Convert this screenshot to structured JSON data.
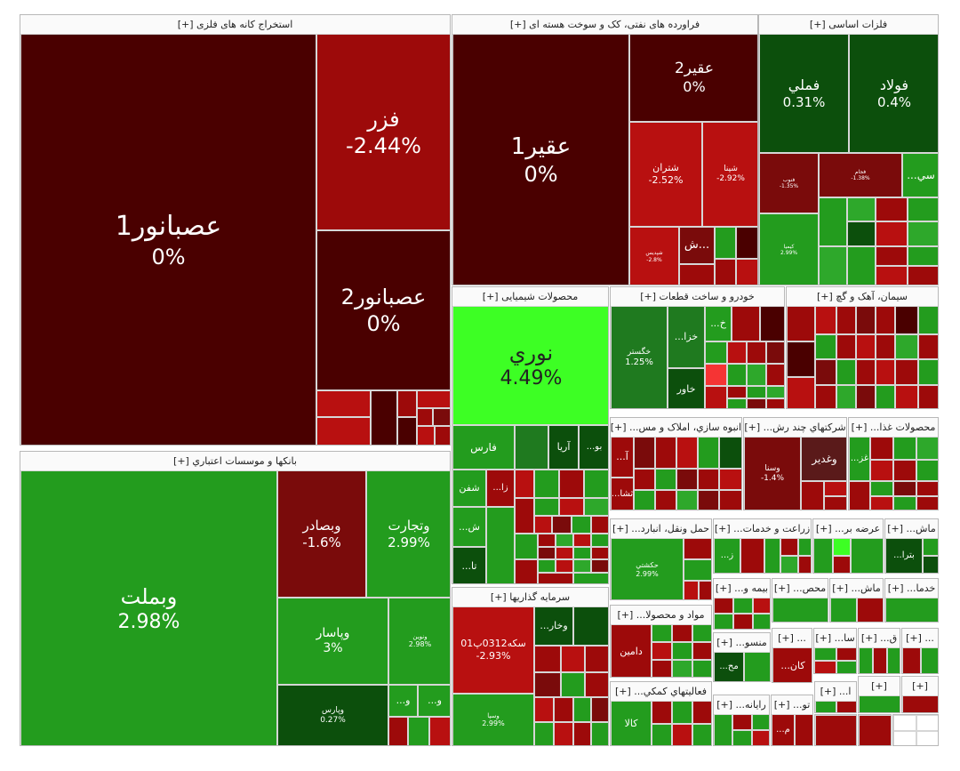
{
  "sectors": {
    "s1": {
      "title": "استخراج کانه های فلزی [+]",
      "tiles": [
        {
          "sym": "عصبانور1",
          "pct": "0%"
        },
        {
          "sym": "فزر",
          "pct": "-2.44%"
        },
        {
          "sym": "عصبانور2",
          "pct": "0%"
        }
      ]
    },
    "s2": {
      "title": "فراورده های نفتی، کک و سوخت هسته ای [+]",
      "tiles": [
        {
          "sym": "عقیر1",
          "pct": "0%"
        },
        {
          "sym": "عقیر2",
          "pct": "0%"
        },
        {
          "sym": "شتران",
          "pct": "-2.52%"
        },
        {
          "sym": "شپنا",
          "pct": "-2.92%"
        },
        {
          "sym": "شپدیس",
          "pct": "-2.8%"
        },
        {
          "sym": "ش..."
        }
      ]
    },
    "s3": {
      "title": "فلزات اساسی [+]",
      "tiles": [
        {
          "sym": "فملي",
          "pct": "0.31%"
        },
        {
          "sym": "فولاد",
          "pct": "0.4%"
        },
        {
          "sym": "فنوب",
          "pct": "-1.35%"
        },
        {
          "sym": "فجام",
          "pct": "-1.38%"
        },
        {
          "sym": "...سي"
        },
        {
          "sym": "کیمیا",
          "pct": "2.99%"
        }
      ]
    },
    "s4": {
      "title": "محصولات شیمیایی [+]",
      "tiles": [
        {
          "sym": "نوري",
          "pct": "4.49%"
        },
        {
          "sym": "فارس"
        },
        {
          "sym": "آریا"
        },
        {
          "sym": "...بو"
        },
        {
          "sym": "شفن"
        },
        {
          "sym": "...زا"
        },
        {
          "sym": "...ش"
        },
        {
          "sym": "...تا"
        }
      ]
    },
    "s5": {
      "title": "خودرو و ساخت قطعات [+]",
      "tiles": [
        {
          "sym": "خگستر",
          "pct": "1.25%"
        },
        {
          "sym": "...خزا"
        },
        {
          "sym": "...خ"
        },
        {
          "sym": "خاور"
        }
      ]
    },
    "s6": {
      "title": "سیمان، آهک و گچ [+]"
    },
    "s7": {
      "title": "انبوه سازي، املاک و مس... [+]",
      "tiles": [
        {
          "sym": "...آ"
        },
        {
          "sym": "...ثشا"
        }
      ]
    },
    "s8": {
      "title": "شرکتهاي چند رش... [+]",
      "tiles": [
        {
          "sym": "وغدير"
        },
        {
          "sym": "وسنا",
          "pct": "-1.4%"
        }
      ]
    },
    "s9": {
      "title": "محصولات غذا... [+]",
      "tiles": [
        {
          "sym": "...غز"
        }
      ]
    },
    "s10": {
      "title": "بانکها و موسسات اعتباري [+]",
      "tiles": [
        {
          "sym": "وبملت",
          "pct": "2.98%"
        },
        {
          "sym": "وبصادر",
          "pct": "-1.6%"
        },
        {
          "sym": "وتجارت",
          "pct": "2.99%"
        },
        {
          "sym": "وپاسار",
          "pct": "3%"
        },
        {
          "sym": "ونوين",
          "pct": "2.98%"
        },
        {
          "sym": "وپارس",
          "pct": "0.27%"
        },
        {
          "sym": "...و"
        },
        {
          "sym": "...و"
        }
      ]
    },
    "s11": {
      "title": "سرمایه گذاریها [+]",
      "tiles": [
        {
          "sym": "سکه0312پ01",
          "pct": "-2.93%"
        },
        {
          "sym": "...وخار"
        },
        {
          "sym": "وسپا",
          "pct": "2.99%"
        }
      ]
    },
    "s12": {
      "title": "حمل ونقل، انبارد... [+]",
      "tiles": [
        {
          "sym": "حکشتي",
          "pct": "2.99%"
        }
      ]
    },
    "s13": {
      "title": "زراعت و خدمات... [+]",
      "tiles": [
        {
          "sym": "...ز"
        }
      ]
    },
    "s14": {
      "title": "عرضه بر... [+]"
    },
    "s15": {
      "title": "ماش... [+]",
      "tiles": [
        {
          "sym": "...بترا"
        }
      ]
    },
    "s16": {
      "title": "مواد و محصولا... [+]",
      "tiles": [
        {
          "sym": "دامين"
        }
      ]
    },
    "s17": {
      "title": "بيمه و... [+]"
    },
    "s18": {
      "title": "محص... [+]"
    },
    "s19": {
      "title": "ماش... [+]"
    },
    "s20": {
      "title": "خدما... [+]"
    },
    "s21": {
      "title": "منسو... [+]",
      "tiles": [
        {
          "sym": "...مح"
        }
      ]
    },
    "s22": {
      "title": "... [+]",
      "tiles": [
        {
          "sym": "...كان"
        }
      ]
    },
    "s23": {
      "title": "سا... [+]"
    },
    "s24": {
      "title": "فعالیتهاي کمکي... [+]",
      "tiles": [
        {
          "sym": "کالا"
        }
      ]
    },
    "s25": {
      "title": "رايانه... [+]"
    },
    "s26": {
      "title": "تو... [+]",
      "tiles": [
        {
          "sym": "...م"
        }
      ]
    },
    "s27": {
      "title": "ق... [+]"
    },
    "s28": {
      "title": "[+]"
    },
    "s29": {
      "title": "... [+]"
    },
    "s30": {
      "title": "[+]"
    },
    "s31": {
      "title": "ا... [+]"
    }
  },
  "colors": {
    "deep_red": "#4a0000",
    "red": "#9d0a0a",
    "bright_red": "#f53434",
    "dark_green": "#0c4f0c",
    "green": "#239c1e",
    "neon_green": "#3dff24",
    "background": "#ffffff",
    "header_bg": "#fafafa"
  }
}
